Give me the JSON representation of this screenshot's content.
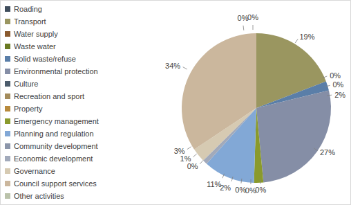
{
  "chart_data": {
    "type": "pie",
    "categories": [
      "Roading",
      "Transport",
      "Water supply",
      "Waste water",
      "Solid waste/refuse",
      "Environmental protection",
      "Culture",
      "Recreation and sport",
      "Property",
      "Emergency management",
      "Planning and regulation",
      "Community development",
      "Economic development",
      "Governance",
      "Council support services",
      "Other activities"
    ],
    "values": [
      0,
      19,
      0,
      0,
      2,
      27,
      0,
      0,
      0,
      2,
      11,
      0,
      1,
      3,
      34,
      0
    ],
    "value_labels": [
      "0%",
      "19%",
      "0%",
      "0%",
      "2%",
      "27%",
      "0%",
      "0%",
      "0%",
      "2%",
      "11%",
      "0%",
      "1%",
      "3%",
      "34%",
      "0%"
    ],
    "colors": [
      "#3f4d5c",
      "#9a9660",
      "#8a5a2e",
      "#6a7a22",
      "#5a7ea8",
      "#858ea6",
      "#4c5c6c",
      "#a48c5c",
      "#b88a3c",
      "#8a9a2c",
      "#82a8d6",
      "#8c96aa",
      "#a2aabb",
      "#d6cab2",
      "#cbb79d",
      "#bac2aa"
    ],
    "data_labels": true,
    "legend": "left"
  }
}
